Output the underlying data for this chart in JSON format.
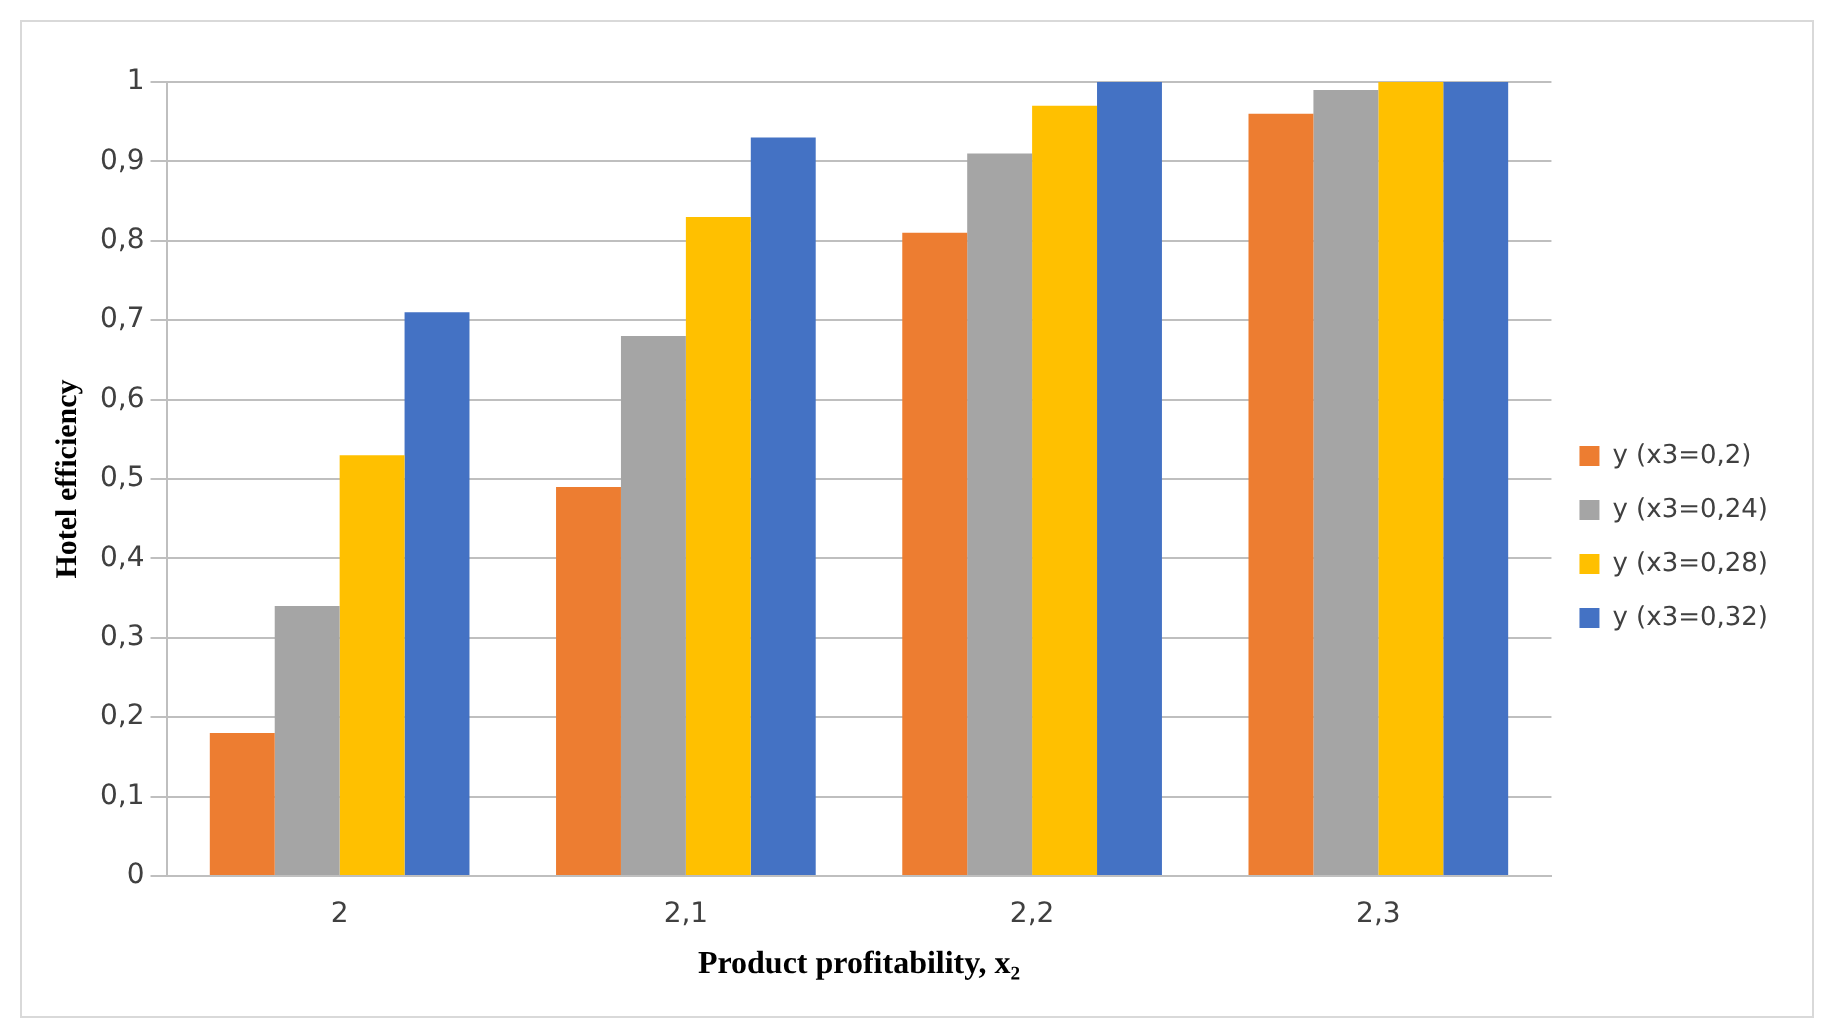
{
  "chart_data": {
    "type": "bar",
    "xlabel": "Product profitability, x₂",
    "ylabel": "Hotel efficiency",
    "categories": [
      "2",
      "2,1",
      "2,2",
      "2,3"
    ],
    "series": [
      {
        "name": "y (x3=0,2)",
        "color": "#ed7d31",
        "values": [
          0.18,
          0.49,
          0.81,
          0.96
        ]
      },
      {
        "name": "y (x3=0,24)",
        "color": "#a5a5a5",
        "values": [
          0.34,
          0.68,
          0.91,
          0.99
        ]
      },
      {
        "name": "y (x3=0,28)",
        "color": "#ffc000",
        "values": [
          0.53,
          0.83,
          0.97,
          1.0
        ]
      },
      {
        "name": "y (x3=0,32)",
        "color": "#4472c4",
        "values": [
          0.71,
          0.93,
          1.0,
          1.0
        ]
      }
    ],
    "ylim": [
      0,
      1
    ],
    "yticks": [
      0,
      {
        "value": 0.1,
        "label": "0,1"
      },
      {
        "value": 0.2,
        "label": "0,2"
      },
      {
        "value": 0.3,
        "label": "0,3"
      },
      {
        "value": 0.4,
        "label": "0,4"
      },
      {
        "value": 0.5,
        "label": "0,5"
      },
      {
        "value": 0.6,
        "label": "0,6"
      },
      {
        "value": 0.7,
        "label": "0,7"
      },
      {
        "value": 0.8,
        "label": "0,8"
      },
      {
        "value": 0.9,
        "label": "0,9"
      },
      1
    ],
    "grid": "y",
    "legend": "right"
  }
}
